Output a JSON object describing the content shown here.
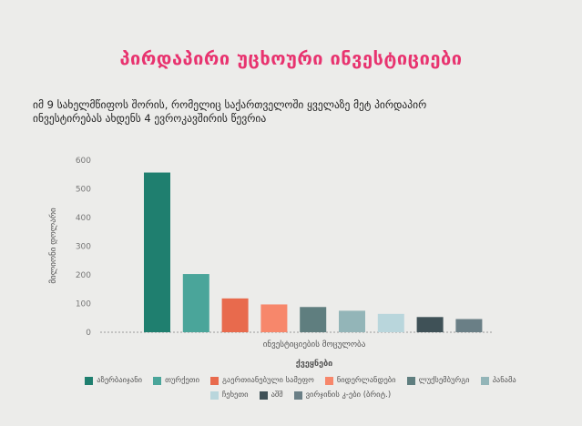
{
  "title": "პირდაპირი უცხოური ინვესტიციები",
  "subtitle_lines": [
    "იმ 9 სახელმწიფოს შორის, რომელიც საქართველოში ყველაზე   მეტ პირდაპირ",
    "ინვესტირებას ახდენს 4 ევროკავშირის  წევრია"
  ],
  "chart_data": {
    "type": "bar",
    "title": "პირდაპირი უცხოური ინვესტიციები",
    "xlabel": "ქვეყნები",
    "ylabel": "მილიონი დოლარი",
    "category_axis_label": "ინვესტიციების მოცულობა",
    "ylim": [
      0,
      600
    ],
    "yticks": [
      0,
      100,
      200,
      300,
      400,
      500,
      600
    ],
    "categories": [
      "აზერბაიჯანი",
      "თურქეთი",
      "გაერთიანებული სამეფო",
      "ნიდერლანდები",
      "ლუქსემბურგი",
      "პანამა",
      "ჩეხეთი",
      "აშშ",
      "ვირჯინის კ-ები (ბრიტ.)"
    ],
    "values": [
      557,
      203,
      118,
      97,
      88,
      75,
      64,
      53,
      46
    ],
    "colors": [
      "#1f7f6f",
      "#4aa59a",
      "#e86a4d",
      "#f7876b",
      "#5f7e7f",
      "#93b5b8",
      "#b9d6dc",
      "#3f5157",
      "#6a7f86"
    ],
    "grid": false,
    "legend": "bottom"
  }
}
